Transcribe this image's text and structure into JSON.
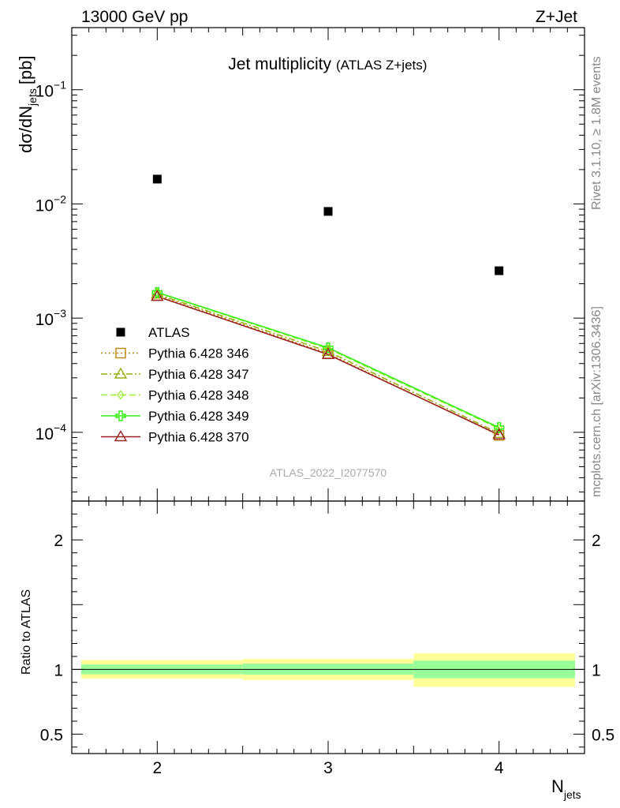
{
  "header": {
    "left": "13000 GeV pp",
    "right": "Z+Jet"
  },
  "side": {
    "rivet": "Rivet 3.1.10, ≥ 1.8M events",
    "mcplots": "mcplots.cern.ch [arXiv:1306.3436]"
  },
  "plot_title": "Jet multiplicity",
  "plot_subtitle": "(ATLAS Z+jets)",
  "analysis_id": "ATLAS_2022_I2077570",
  "chart_data": [
    {
      "type": "scatter",
      "panel": "main",
      "ylabel": "dσ/dN",
      "ylabel_sub": "jets",
      "ylabel_unit": "[pb]",
      "yscale": "log",
      "xlim": [
        1.5,
        4.5
      ],
      "ylim": [
        2.5e-05,
        0.35
      ],
      "y_ticks": [
        {
          "value": 0.1,
          "label": "10",
          "exp": "−1"
        },
        {
          "value": 0.01,
          "label": "10",
          "exp": "−2"
        },
        {
          "value": 0.001,
          "label": "10",
          "exp": "−3"
        },
        {
          "value": 0.0001,
          "label": "10",
          "exp": "−4"
        }
      ],
      "legend_position": "lower-left",
      "series": [
        {
          "name": "ATLAS",
          "color": "#000000",
          "marker": "square",
          "x": [
            2,
            3,
            4
          ],
          "values": [
            0.0165,
            0.0086,
            0.0026
          ]
        },
        {
          "name": "Pythia 6.428 346",
          "color": "#b8860b",
          "marker": "open-square",
          "dash": "2,3",
          "x": [
            2,
            3,
            4
          ],
          "values": [
            0.00158,
            0.00049,
            9.4e-05
          ]
        },
        {
          "name": "Pythia 6.428 347",
          "color": "#9aad10",
          "marker": "open-triangle",
          "dash": "8,3,2,3",
          "x": [
            2,
            3,
            4
          ],
          "values": [
            0.00162,
            0.00051,
            9.8e-05
          ]
        },
        {
          "name": "Pythia 6.428 348",
          "color": "#99ee33",
          "marker": "open-diamond",
          "dash": "8,4",
          "x": [
            2,
            3,
            4
          ],
          "values": [
            0.00168,
            0.00054,
            0.000108
          ]
        },
        {
          "name": "Pythia 6.428 349",
          "color": "#33ee11",
          "marker": "cross",
          "dash": "",
          "x": [
            2,
            3,
            4
          ],
          "values": [
            0.00168,
            0.00055,
            0.00011
          ]
        },
        {
          "name": "Pythia 6.428 370",
          "color": "#992222",
          "marker": "open-triangle",
          "dash": "",
          "x": [
            2,
            3,
            4
          ],
          "values": [
            0.00155,
            0.00048,
            9.5e-05
          ]
        }
      ]
    },
    {
      "type": "area",
      "panel": "ratio",
      "ylabel": "Ratio to ATLAS",
      "xlabel": "N",
      "xlabel_sub": "jets",
      "xlim": [
        1.5,
        4.5
      ],
      "ylim": [
        0.35,
        2.3
      ],
      "x_ticks": [
        {
          "value": 2,
          "label": "2"
        },
        {
          "value": 3,
          "label": "3"
        },
        {
          "value": 4,
          "label": "4"
        }
      ],
      "y_ticks": [
        {
          "value": 0.5,
          "label": "0.5"
        },
        {
          "value": 1,
          "label": "1"
        },
        {
          "value": 2,
          "label": "2"
        }
      ],
      "reference": 1,
      "bands": [
        {
          "x0": 1.5,
          "x1": 2.5,
          "inner": [
            0.963,
            1.037
          ],
          "outer": [
            0.928,
            1.072
          ]
        },
        {
          "x0": 2.5,
          "x1": 3.5,
          "inner": [
            0.96,
            1.045
          ],
          "outer": [
            0.918,
            1.082
          ]
        },
        {
          "x0": 3.5,
          "x1": 4.5,
          "inner": [
            0.932,
            1.068
          ],
          "outer": [
            0.865,
            1.125
          ]
        }
      ],
      "band_colors": {
        "inner": "#99ff99",
        "outer": "#ffff99"
      }
    }
  ]
}
